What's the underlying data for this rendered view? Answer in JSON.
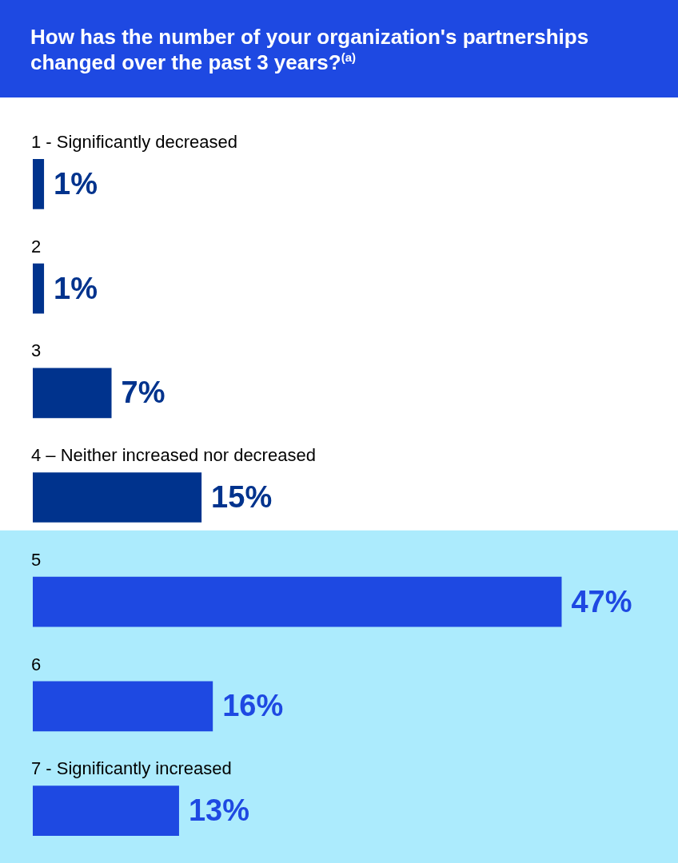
{
  "chart_data": {
    "type": "bar",
    "orientation": "horizontal",
    "title": "How has the number of your organization's partnerships changed over the past 3 years?$^{(a)}$",
    "categories": [
      "1 - Significantly decreased",
      "2",
      "3",
      "4 – Neither increased nor decreased",
      "5",
      "6",
      "7 - Significantly increased"
    ],
    "values": [
      1,
      1,
      7,
      15,
      47,
      16,
      13
    ],
    "colors": [
      "#00338d",
      "#00338d",
      "#00338d",
      "#00338d",
      "#1e49e2",
      "#1e49e2",
      "#1e49e2"
    ],
    "value_labels": [
      "1%",
      "1%",
      "7%",
      "15%",
      "47%",
      "16%",
      "13%"
    ],
    "bands": [
      {
        "axis": "y",
        "from": "5",
        "to": "7 - Significantly increased",
        "color": "#acebfd"
      }
    ],
    "legend": false
  }
}
